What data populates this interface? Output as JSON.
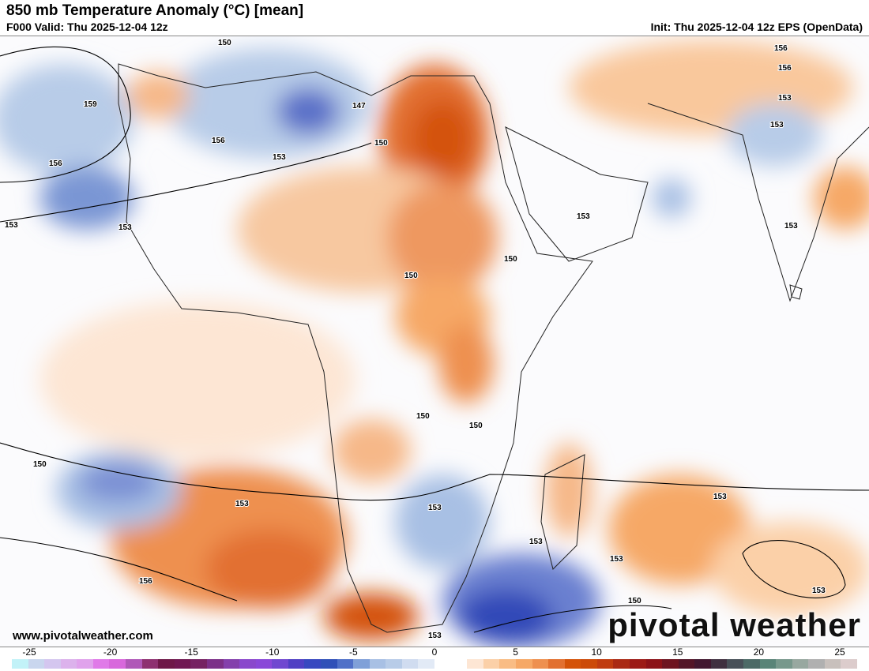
{
  "header": {
    "title": "850 mb Temperature Anomaly (°C) [mean]",
    "valid": "F000 Valid: Thu 2025-12-04 12z",
    "init": "Init: Thu 2025-12-04 12z EPS (OpenData)"
  },
  "footer": {
    "url": "www.pivotalweather.com",
    "brand": "pivotal weather"
  },
  "colorbar": {
    "units": "°C",
    "min": -25,
    "max": 25,
    "tick_labels": [
      "-25",
      "-20",
      "-15",
      "-10",
      "-5",
      "0",
      "5",
      "10",
      "15",
      "20",
      "25"
    ],
    "colors": [
      "#c2f2f8",
      "#c9d6ee",
      "#d4c6ef",
      "#dcb2ec",
      "#e0a2ec",
      "#e07ae8",
      "#d868dc",
      "#b058b8",
      "#8e3070",
      "#6e1848",
      "#701852",
      "#762262",
      "#7c3088",
      "#8440ac",
      "#8a48cc",
      "#8a48d8",
      "#7048d0",
      "#5040c4",
      "#3848c0",
      "#3050b8",
      "#5070c8",
      "#80a0d8",
      "#a8c0e4",
      "#b8cce8",
      "#d0dcf0",
      "#e2eaf6",
      "#ffffff",
      "#ffffff",
      "#fde6d4",
      "#fbd0a8",
      "#f9bc84",
      "#f6a866",
      "#ee9050",
      "#e27030",
      "#d45208",
      "#cc4a08",
      "#c03c10",
      "#aa2a14",
      "#9c1a16",
      "#8c1218",
      "#6e1420",
      "#541628",
      "#421830",
      "#403040",
      "#485058",
      "#4c6a66",
      "#5a8478",
      "#78988c",
      "#98a8a0",
      "#b0b0b0",
      "#c8c0bc",
      "#dccccc"
    ]
  },
  "contour_labels": [
    "159",
    "156",
    "153",
    "150",
    "147",
    "150",
    "153",
    "156",
    "153",
    "153",
    "153",
    "156",
    "153",
    "153",
    "150",
    "150",
    "150",
    "150",
    "150",
    "153",
    "153",
    "153",
    "153",
    "156",
    "153",
    "153",
    "150",
    "153",
    "156"
  ]
}
